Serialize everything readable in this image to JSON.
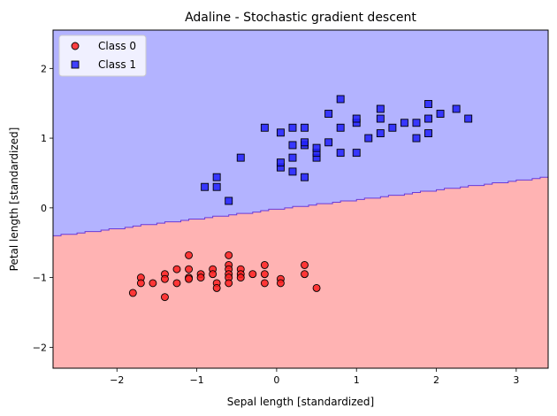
{
  "chart_data": {
    "type": "scatter",
    "title": "Adaline - Stochastic gradient descent",
    "xlabel": "Sepal length [standardized]",
    "ylabel": "Petal length [standardized]",
    "xlim": [
      -2.8,
      3.4
    ],
    "ylim": [
      -2.3,
      2.55
    ],
    "xticks": [
      -2,
      -1,
      0,
      1,
      2,
      3
    ],
    "yticks": [
      -2,
      -1,
      0,
      1,
      2
    ],
    "grid": false,
    "legend": "top-left",
    "decision_regions": {
      "boundary": [
        [
          -2.8,
          -0.4
        ],
        [
          3.4,
          0.45
        ]
      ],
      "class_0_color": "#ffb3b3",
      "class_1_color": "#b3b3ff"
    },
    "series": [
      {
        "name": "Class 0",
        "marker": "circle",
        "color": "#ff2020",
        "points": [
          [
            -1.8,
            -1.22
          ],
          [
            -1.7,
            -1.0
          ],
          [
            -1.7,
            -1.08
          ],
          [
            -1.55,
            -1.08
          ],
          [
            -1.4,
            -0.95
          ],
          [
            -1.4,
            -1.02
          ],
          [
            -1.4,
            -1.28
          ],
          [
            -1.25,
            -0.88
          ],
          [
            -1.25,
            -1.08
          ],
          [
            -1.1,
            -0.68
          ],
          [
            -1.1,
            -0.88
          ],
          [
            -1.1,
            -1.0
          ],
          [
            -1.1,
            -1.02
          ],
          [
            -0.95,
            -0.95
          ],
          [
            -0.95,
            -1.0
          ],
          [
            -0.8,
            -0.88
          ],
          [
            -0.8,
            -0.95
          ],
          [
            -0.75,
            -1.08
          ],
          [
            -0.75,
            -1.15
          ],
          [
            -0.6,
            -0.68
          ],
          [
            -0.6,
            -0.82
          ],
          [
            -0.6,
            -0.88
          ],
          [
            -0.6,
            -0.95
          ],
          [
            -0.6,
            -1.0
          ],
          [
            -0.6,
            -1.08
          ],
          [
            -0.45,
            -0.88
          ],
          [
            -0.45,
            -0.95
          ],
          [
            -0.45,
            -1.0
          ],
          [
            -0.3,
            -0.95
          ],
          [
            -0.15,
            -0.82
          ],
          [
            -0.15,
            -0.95
          ],
          [
            -0.15,
            -1.08
          ],
          [
            0.05,
            -1.02
          ],
          [
            0.05,
            -1.08
          ],
          [
            0.35,
            -0.82
          ],
          [
            0.35,
            -0.95
          ],
          [
            0.5,
            -1.15
          ]
        ]
      },
      {
        "name": "Class 1",
        "marker": "square",
        "color": "#2020ff",
        "points": [
          [
            -0.9,
            0.3
          ],
          [
            -0.75,
            0.3
          ],
          [
            -0.75,
            0.44
          ],
          [
            -0.6,
            0.1
          ],
          [
            -0.45,
            0.72
          ],
          [
            -0.15,
            1.15
          ],
          [
            0.05,
            0.58
          ],
          [
            0.05,
            0.65
          ],
          [
            0.05,
            1.08
          ],
          [
            0.2,
            0.52
          ],
          [
            0.2,
            0.72
          ],
          [
            0.2,
            0.9
          ],
          [
            0.2,
            1.15
          ],
          [
            0.35,
            0.44
          ],
          [
            0.35,
            0.9
          ],
          [
            0.35,
            0.94
          ],
          [
            0.35,
            1.15
          ],
          [
            0.5,
            0.72
          ],
          [
            0.5,
            0.79
          ],
          [
            0.5,
            0.86
          ],
          [
            0.65,
            0.94
          ],
          [
            0.65,
            1.35
          ],
          [
            0.8,
            0.79
          ],
          [
            0.8,
            1.15
          ],
          [
            0.8,
            1.56
          ],
          [
            1.0,
            0.79
          ],
          [
            1.0,
            1.22
          ],
          [
            1.0,
            1.28
          ],
          [
            1.15,
            1.0
          ],
          [
            1.3,
            1.07
          ],
          [
            1.3,
            1.28
          ],
          [
            1.3,
            1.42
          ],
          [
            1.45,
            1.15
          ],
          [
            1.6,
            1.22
          ],
          [
            1.75,
            1.0
          ],
          [
            1.75,
            1.22
          ],
          [
            1.9,
            1.07
          ],
          [
            1.9,
            1.28
          ],
          [
            1.9,
            1.49
          ],
          [
            2.05,
            1.35
          ],
          [
            2.25,
            1.42
          ],
          [
            2.4,
            1.28
          ]
        ]
      }
    ]
  }
}
